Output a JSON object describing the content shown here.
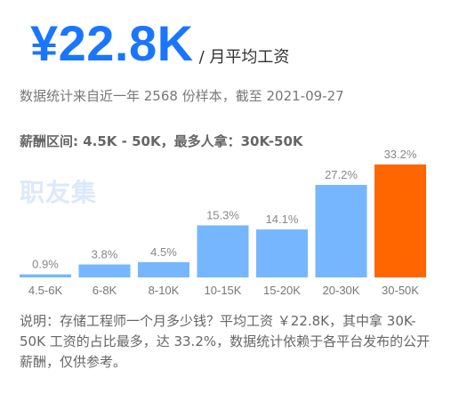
{
  "header": {
    "salary": "¥22.8K",
    "unit": "/ 月平均工资"
  },
  "data_note": "数据统计来自近一年 2568 份样本，截至 2021-09-27",
  "range_line": "薪酬区间: 4.5K - 50K，最多人拿：30K-50K",
  "watermark": "职友集",
  "colors": {
    "accent": "#1a76ff",
    "bar": "#76b6ff",
    "bar_highlight": "#ff6600"
  },
  "chart_data": {
    "type": "bar",
    "categories": [
      "4.5-6K",
      "6-8K",
      "8-10K",
      "10-15K",
      "15-20K",
      "20-30K",
      "30-50K"
    ],
    "values": [
      0.9,
      3.8,
      4.5,
      15.3,
      14.1,
      27.2,
      33.2
    ],
    "value_labels": [
      "0.9%",
      "3.8%",
      "4.5%",
      "15.3%",
      "14.1%",
      "27.2%",
      "33.2%"
    ],
    "highlight_index": 6,
    "ylim": [
      0,
      33.2
    ],
    "grid": false
  },
  "description": "说明：存储工程师一个月多少钱？平均工资 ￥22.8K，其中拿 30K-50K 工资的占比最多，达 33.2%，数据统计依赖于各平台发布的公开薪酬，仅供参考。"
}
